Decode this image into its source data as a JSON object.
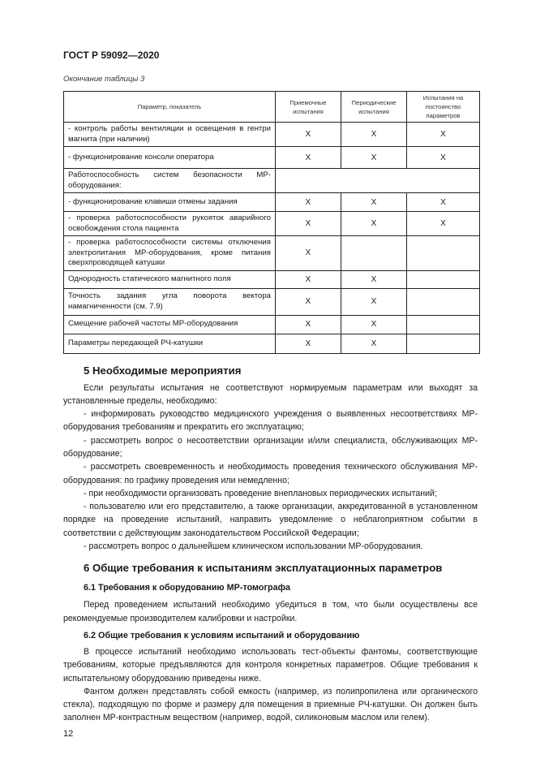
{
  "header": "ГОСТ Р 59092—2020",
  "table_caption": "Окончание таблицы 3",
  "table": {
    "columns": [
      "Параметр, показатель",
      "Приемочные испытания",
      "Периодические испытания",
      "Испытания на постоянство параметров"
    ],
    "rows": [
      {
        "param": "- контроль работы вентиляции и освещения в гентри магнита (при наличии)",
        "c1": "X",
        "c2": "X",
        "c3": "X"
      },
      {
        "param": "- функционирование консоли оператора",
        "c1": "X",
        "c2": "X",
        "c3": "X"
      },
      {
        "param": "Работоспособность систем безопасности МР-оборудования:",
        "c1": "",
        "c2": "",
        "c3": ""
      },
      {
        "param": "- функционирование клавиши отмены задания",
        "c1": "X",
        "c2": "X",
        "c3": "X"
      },
      {
        "param": "- проверка работоспособности рукояток аварийного освобождения стола пациента",
        "c1": "X",
        "c2": "X",
        "c3": "X"
      },
      {
        "param": "- проверка работоспособности системы отключения электропитания МР-оборудования, кроме питания сверхпроводящей катушки",
        "c1": "X",
        "c2": "",
        "c3": ""
      },
      {
        "param": "Однородность статического магнитного поля",
        "c1": "X",
        "c2": "X",
        "c3": ""
      },
      {
        "param": "Точность задания угла поворота вектора намагниченности (см. 7.9)",
        "c1": "X",
        "c2": "X",
        "c3": ""
      },
      {
        "param": "Смещение рабочей частоты МР-оборудования",
        "c1": "X",
        "c2": "X",
        "c3": ""
      },
      {
        "param": "Параметры передающей РЧ-катушки",
        "c1": "X",
        "c2": "X",
        "c3": ""
      }
    ]
  },
  "section5": {
    "title": "5  Необходимые мероприятия",
    "paragraphs": [
      "Если результаты испытания не соответствуют нормируемым параметрам или выходят за установленные пределы, необходимо:",
      "- информировать руководство медицинского учреждения о выявленных несоответствиях МР-оборудования требованиям и прекратить его эксплуатацию;",
      "- рассмотреть вопрос о несоответствии организации и/или специалиста, обслуживающих МР-оборудование;",
      "- рассмотреть своевременность и необходимость проведения технического обслуживания МР-оборудования: по графику проведения или немедленно;",
      "- при необходимости организовать проведение внеплановых периодических испытаний;",
      "- пользователю или его представителю, а также организации, аккредитованной в установленном порядке на проведение испытаний, направить уведомление о неблагоприятном событии в соответствии с действующим законодательством Российской Федерации;",
      "- рассмотреть вопрос о дальнейшем клиническом использовании МР-оборудования."
    ]
  },
  "section6": {
    "title": "6  Общие требования к испытаниям эксплуатационных параметров",
    "sub1": {
      "title": "6.1  Требования к оборудованию МР-томографа",
      "paragraphs": [
        "Перед проведением испытаний необходимо убедиться в том, что были осуществлены все рекомендуемые производителем калибровки и настройки."
      ]
    },
    "sub2": {
      "title": "6.2  Общие требования к условиям испытаний и оборудованию",
      "paragraphs": [
        "В процессе испытаний необходимо использовать тест-объекты фантомы, соответствующие требованиям, которые предъявляются для контроля конкретных параметров. Общие требования к испытательному оборудованию приведены ниже.",
        "Фантом должен представлять собой емкость (например, из полипропилена или органического стекла), подходящую по форме и размеру для помещения в приемные РЧ-катушки. Он должен быть заполнен МР-контрастным веществом (например, водой, силиконовым маслом или гелем)."
      ]
    }
  },
  "page_number": "12"
}
